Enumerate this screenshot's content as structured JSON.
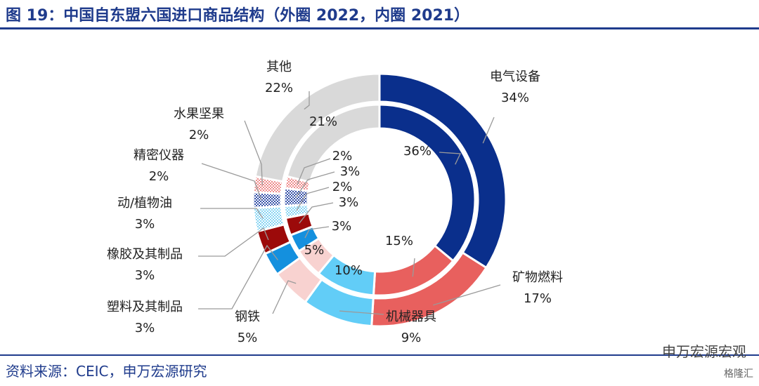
{
  "header": {
    "title": "图 19：中国自东盟六国进口商品结构（外圈 2022，内圈 2021）"
  },
  "footer": {
    "source": "资料来源：CEIC，申万宏源研究",
    "watermark": "申万宏源宏观",
    "logo": "格隆汇"
  },
  "chart_data": {
    "type": "pie",
    "subtype": "donut-nested",
    "title": "图 19：中国自东盟六国进口商品结构（外圈 2022，内圈 2021）",
    "rings": [
      {
        "name": "外圈 2022",
        "values": [
          34,
          17,
          9,
          5,
          3,
          3,
          3,
          2,
          2,
          22
        ],
        "value_labels": [
          "34%",
          "17%",
          "9%",
          "5%",
          "3%",
          "3%",
          "3%",
          "2%",
          "2%",
          "22%"
        ]
      },
      {
        "name": "内圈 2021",
        "values": [
          36,
          15,
          10,
          5,
          3,
          3,
          2,
          3,
          2,
          21
        ],
        "value_labels": [
          "36%",
          "15%",
          "10%",
          "5%",
          "3%",
          "3%",
          "2%",
          "3%",
          "2%",
          "21%"
        ]
      }
    ],
    "categories": [
      {
        "name": "电气设备",
        "color": "#0a2f8c",
        "pattern": "solid"
      },
      {
        "name": "矿物燃料",
        "color": "#e8605e",
        "pattern": "solid"
      },
      {
        "name": "机械器具",
        "color": "#62cdf7",
        "pattern": "solid"
      },
      {
        "name": "钢铁",
        "color": "#f8d2d0",
        "pattern": "solid"
      },
      {
        "name": "塑料及其制品",
        "color": "#1490de",
        "pattern": "solid"
      },
      {
        "name": "橡胶及其制品",
        "color": "#9c0a0a",
        "pattern": "solid"
      },
      {
        "name": "动/植物油",
        "color": "#86d4f3",
        "pattern": "checker"
      },
      {
        "name": "精密仪器",
        "color": "#3450a8",
        "pattern": "checker"
      },
      {
        "name": "水果坚果",
        "color": "#ee8a8a",
        "pattern": "checker"
      },
      {
        "name": "其他",
        "color": "#d9d9d9",
        "pattern": "solid"
      }
    ]
  }
}
